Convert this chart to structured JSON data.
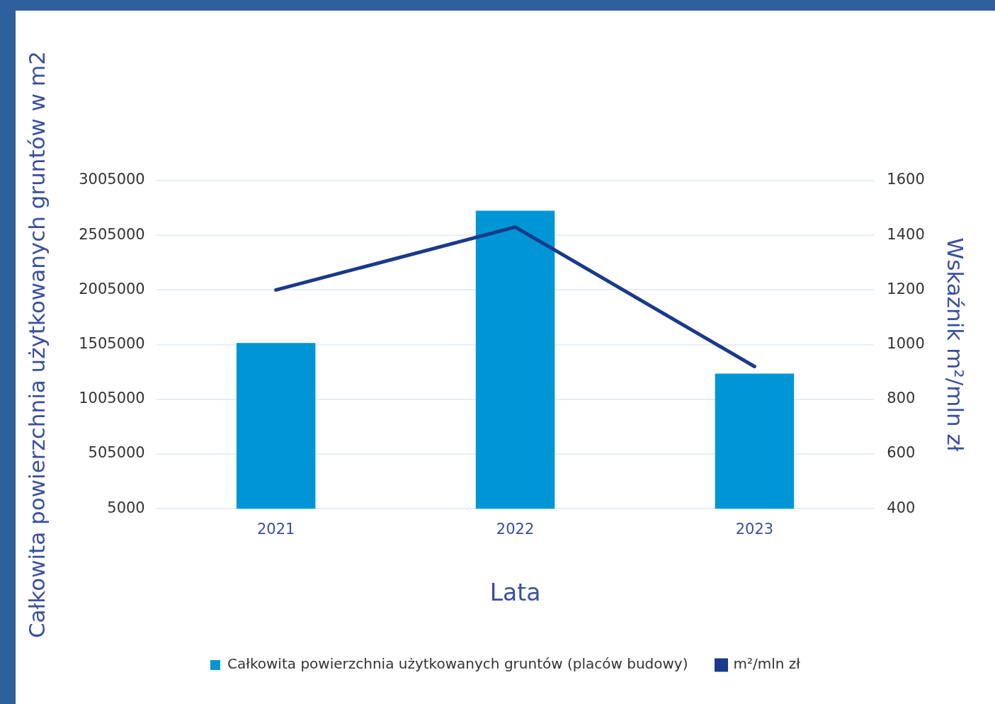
{
  "chart_data": {
    "type": "bar",
    "xlabel": "Lata",
    "ylabel": "Całkowita powierzchnia użytkowanych gruntów w m2",
    "y2label": "Wskaźnik m²/mln zł",
    "categories": [
      "2021",
      "2022",
      "2023"
    ],
    "series": [
      {
        "name": "Całkowita powierzchnia użytkowanych gruntów (placów budowy)",
        "color": "#0096d6",
        "values": [
          1520000,
          2730000,
          1240000
        ]
      },
      {
        "name": "m²/mln zł",
        "type": "line",
        "axis": "y2",
        "color": "#1a3a8a",
        "values": [
          1200,
          1430,
          920
        ]
      }
    ],
    "ylim": [
      5000,
      3005000
    ],
    "yticks": [
      5000,
      505000,
      1005000,
      1505000,
      2005000,
      2505000,
      3005000
    ],
    "y2lim": [
      400,
      1600
    ],
    "y2ticks": [
      400,
      600,
      800,
      1000,
      1200,
      1400,
      1600
    ],
    "grid": "y",
    "legend": "bottom",
    "marker": "none",
    "line_style": "solid"
  }
}
